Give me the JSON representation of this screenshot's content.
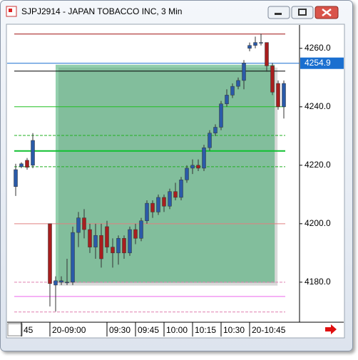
{
  "chart_data": {
    "type": "candlestick",
    "title": "SJPJ2914 - JAPAN TOBACCO INC, 3 Min",
    "x": [
      -6,
      -5,
      -4,
      -3,
      0,
      1,
      2,
      3,
      4,
      5,
      6,
      7,
      8,
      9,
      10,
      11,
      12,
      13,
      14,
      15,
      16,
      17,
      18,
      19,
      20,
      21,
      22,
      23,
      24,
      25,
      26,
      27,
      28,
      29,
      30,
      31,
      32,
      33,
      34,
      35,
      36,
      37,
      38,
      39,
      40,
      41
    ],
    "open": [
      4212.7,
      4219.5,
      4221.7,
      4220,
      4200,
      4179,
      4180,
      4180,
      4180,
      4197,
      4202,
      4198,
      4192,
      4196,
      4199,
      4192,
      4190,
      4195,
      4190,
      4198,
      4195,
      4201,
      4207,
      4204,
      4209,
      4206,
      4211,
      4209,
      4215,
      4219,
      4220,
      4219,
      4226,
      4231,
      4233,
      4241,
      4244,
      4247,
      4249,
      4260,
      4261,
      4262,
      4262,
      4254,
      4248,
      4240
    ],
    "high": [
      4220.5,
      4221,
      4222.5,
      4231,
      4200,
      4182,
      4182,
      4188,
      4199,
      4204,
      4205,
      4200,
      4200,
      4200,
      4201,
      4195,
      4196,
      4196,
      4199,
      4200,
      4202,
      4208,
      4208,
      4210,
      4210,
      4212,
      4214,
      4216,
      4220,
      4222,
      4222,
      4227,
      4232,
      4234,
      4242,
      4246,
      4248,
      4250,
      4256,
      4262,
      4264,
      4265,
      4262,
      4255,
      4249,
      4249
    ],
    "low": [
      4209.5,
      4219,
      4218.5,
      4219,
      4171.7,
      4170,
      4179,
      4179,
      4179,
      4192,
      4195,
      4190,
      4188,
      4185,
      4190,
      4185,
      4186,
      4188,
      4189,
      4193,
      4194,
      4200,
      4202,
      4203,
      4204,
      4205,
      4208,
      4208,
      4214,
      4217,
      4218,
      4218,
      4225,
      4230,
      4232,
      4240,
      4243,
      4246,
      4246,
      4259,
      4260,
      4261,
      4252,
      4244,
      4239,
      4236
    ],
    "close": [
      4218.5,
      4220.5,
      4219.3,
      4228.5,
      4179.5,
      4180.5,
      4180.5,
      4180,
      4197,
      4202,
      4198,
      4192,
      4196,
      4188,
      4192,
      4190,
      4195,
      4190,
      4198,
      4195,
      4201,
      4207,
      4204,
      4209,
      4206,
      4211,
      4209,
      4215,
      4219,
      4220,
      4219,
      4226,
      4231,
      4233,
      4241,
      4244,
      4247,
      4249,
      4255,
      4261,
      4262,
      4262,
      4254,
      4245,
      4240,
      4248
    ],
    "up_color": "#2a5aa8",
    "down_color": "#a81e1e",
    "xlim": [
      -7.5,
      43.75
    ],
    "xticks": [
      {
        "value": -5,
        "label": "45"
      },
      {
        "value": 0,
        "label": "20-09:00"
      },
      {
        "value": 10,
        "label": "09:30"
      },
      {
        "value": 15,
        "label": "09:45"
      },
      {
        "value": 20,
        "label": "10:00"
      },
      {
        "value": 25,
        "label": "10:15"
      },
      {
        "value": 30,
        "label": "10:30"
      },
      {
        "value": 35,
        "label": "20-10:45"
      }
    ],
    "ylim": [
      4166.3,
      4268
    ],
    "yticks": [
      {
        "value": 4180,
        "label": "4180.0"
      },
      {
        "value": 4200,
        "label": "4200.0"
      },
      {
        "value": 4220,
        "label": "4220.0"
      },
      {
        "value": 4240,
        "label": "4240.0"
      },
      {
        "value": 4260,
        "label": "4260.0"
      }
    ],
    "last_price": 4254.9,
    "last_price_color": "#1a6fd0",
    "levels": [
      {
        "value": 4264.9,
        "color": "#a01010",
        "style": "solid"
      },
      {
        "value": 4252.2,
        "color": "#000000",
        "style": "solid"
      },
      {
        "value": 4240,
        "color": "#22c022",
        "style": "solid"
      },
      {
        "value": 4230.2,
        "color": "#22b022",
        "style": "dashed"
      },
      {
        "value": 4224.9,
        "color": "#10c030",
        "style": "thick"
      },
      {
        "value": 4219.5,
        "color": "#22b022",
        "style": "dashed"
      },
      {
        "value": 4200,
        "color": "#e08080",
        "style": "solid"
      },
      {
        "value": 4180,
        "color": "#e080b0",
        "style": "dashed"
      },
      {
        "value": 4175.1,
        "color": "#ee66ee",
        "style": "solid"
      },
      {
        "value": 4169.8,
        "color": "#e080b0",
        "style": "dashed"
      }
    ],
    "zone": {
      "x": [
        1,
        39.4
      ],
      "y": [
        4179.8,
        4254.4
      ],
      "color": "#3aa86a"
    }
  }
}
